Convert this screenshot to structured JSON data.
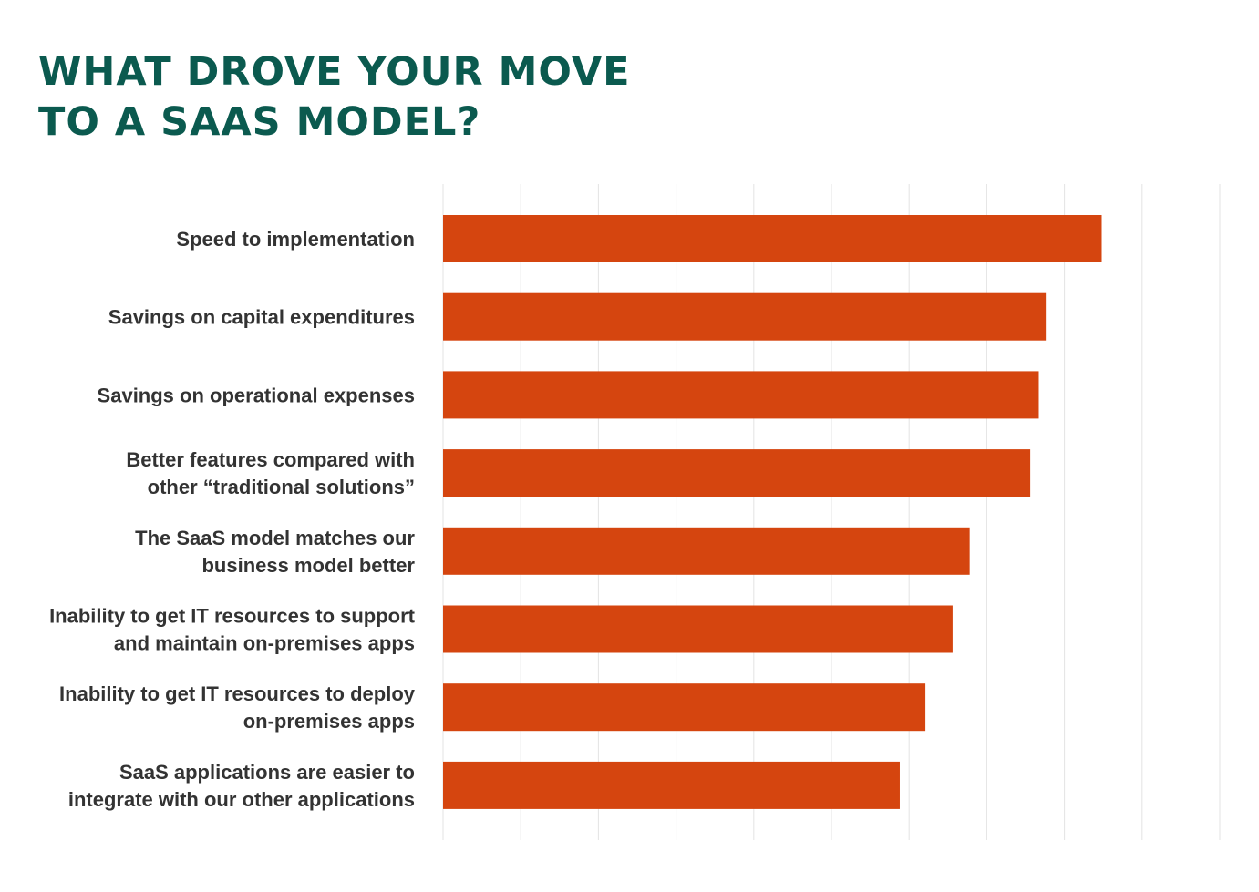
{
  "title_lines": [
    "WHAT DROVE YOUR MOVE",
    "TO A SAAS MODEL?"
  ],
  "colors": {
    "title": "#0b5a4f",
    "bar": "#d5450f",
    "grid": "#e3e3e3",
    "label": "#333333"
  },
  "chart_data": {
    "type": "bar",
    "orientation": "horizontal",
    "title": "WHAT DROVE YOUR MOVE TO A SAAS MODEL?",
    "categories": [
      [
        "Speed to implementation"
      ],
      [
        "Savings on capital expenditures"
      ],
      [
        "Savings on operational expenses"
      ],
      [
        "Better features compared with",
        "other “traditional  solutions”"
      ],
      [
        "The SaaS model matches our",
        "business model better"
      ],
      [
        "Inability to get IT resources to support",
        "and maintain on-premises apps"
      ],
      [
        "Inability to get IT resources to deploy",
        "on-premises apps"
      ],
      [
        "SaaS applications are easier to",
        "integrate with our other applications"
      ]
    ],
    "values": [
      8.48,
      7.76,
      7.67,
      7.56,
      6.78,
      6.56,
      6.21,
      5.88
    ],
    "xlim": [
      0,
      10
    ],
    "grid": true,
    "axis_ticks_labeled": false
  }
}
